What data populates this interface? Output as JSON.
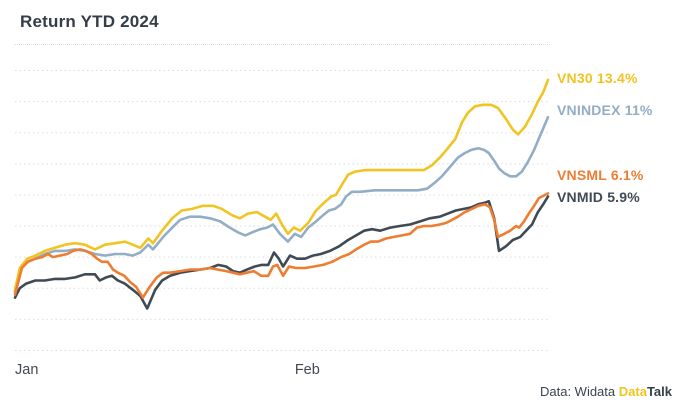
{
  "title": "Return YTD 2024",
  "credit": {
    "prefix": "Data: Widata ",
    "brand_yellow": "Data",
    "brand_dark": "Talk"
  },
  "colors": {
    "background": "#ffffff",
    "title_text": "#333e48",
    "gridline": "#dddddd",
    "axis_label": "#3e4954",
    "credit_yellow": "#f2c51e"
  },
  "chart_data": {
    "type": "line",
    "title": "Return YTD 2024",
    "xlabel": "",
    "ylabel": "",
    "unit": "percent YTD return",
    "grid": "horizontal dotted lines, unlabeled",
    "legend_position": "right edge, colored text at line ends",
    "ylim": [
      -4.1,
      15.0
    ],
    "gridlines": [
      14,
      12,
      10,
      8,
      6,
      4,
      2,
      0,
      -2,
      -4
    ],
    "x_ticks": [
      {
        "label": "Jan",
        "t": 0.0
      },
      {
        "label": "Feb",
        "t": 0.525
      }
    ],
    "draw_order": [
      1,
      0,
      3,
      2
    ],
    "series": [
      {
        "name": "VN30",
        "return_pct": 13.4,
        "display": "VN30 13.4%",
        "color": "#f0c422",
        "points": [
          [
            0,
            -0.1
          ],
          [
            0.009,
            1.3
          ],
          [
            0.023,
            1.9
          ],
          [
            0.038,
            2.1
          ],
          [
            0.056,
            2.4
          ],
          [
            0.075,
            2.6
          ],
          [
            0.094,
            2.8
          ],
          [
            0.113,
            2.9
          ],
          [
            0.131,
            2.8
          ],
          [
            0.15,
            2.5
          ],
          [
            0.169,
            2.8
          ],
          [
            0.188,
            2.9
          ],
          [
            0.206,
            3.0
          ],
          [
            0.221,
            2.8
          ],
          [
            0.235,
            2.6
          ],
          [
            0.25,
            3.2
          ],
          [
            0.259,
            2.9
          ],
          [
            0.276,
            3.7
          ],
          [
            0.295,
            4.5
          ],
          [
            0.313,
            5.0
          ],
          [
            0.332,
            5.1
          ],
          [
            0.353,
            5.3
          ],
          [
            0.372,
            5.3
          ],
          [
            0.388,
            5.1
          ],
          [
            0.407,
            4.7
          ],
          [
            0.422,
            4.5
          ],
          [
            0.437,
            4.8
          ],
          [
            0.454,
            4.9
          ],
          [
            0.469,
            4.6
          ],
          [
            0.48,
            4.4
          ],
          [
            0.49,
            4.8
          ],
          [
            0.501,
            4.1
          ],
          [
            0.512,
            3.5
          ],
          [
            0.523,
            3.9
          ],
          [
            0.535,
            3.7
          ],
          [
            0.55,
            4.2
          ],
          [
            0.565,
            5.0
          ],
          [
            0.58,
            5.5
          ],
          [
            0.593,
            5.9
          ],
          [
            0.602,
            6.0
          ],
          [
            0.614,
            6.7
          ],
          [
            0.625,
            7.3
          ],
          [
            0.638,
            7.5
          ],
          [
            0.657,
            7.6
          ],
          [
            0.685,
            7.6
          ],
          [
            0.713,
            7.6
          ],
          [
            0.741,
            7.6
          ],
          [
            0.767,
            7.6
          ],
          [
            0.782,
            7.9
          ],
          [
            0.797,
            8.4
          ],
          [
            0.812,
            9.0
          ],
          [
            0.826,
            9.6
          ],
          [
            0.839,
            10.7
          ],
          [
            0.85,
            11.3
          ],
          [
            0.863,
            11.7
          ],
          [
            0.878,
            11.8
          ],
          [
            0.893,
            11.8
          ],
          [
            0.906,
            11.6
          ],
          [
            0.921,
            10.9
          ],
          [
            0.934,
            10.2
          ],
          [
            0.944,
            9.9
          ],
          [
            0.957,
            10.4
          ],
          [
            0.97,
            11.2
          ],
          [
            0.981,
            12.0
          ],
          [
            0.991,
            12.6
          ],
          [
            1,
            13.4
          ]
        ]
      },
      {
        "name": "VNINDEX",
        "return_pct": 11,
        "display": "VNINDEX 11%",
        "color": "#92adc5",
        "points": [
          [
            0,
            -0.2
          ],
          [
            0.009,
            1.2
          ],
          [
            0.023,
            1.7
          ],
          [
            0.038,
            1.9
          ],
          [
            0.056,
            2.2
          ],
          [
            0.075,
            2.4
          ],
          [
            0.094,
            2.4
          ],
          [
            0.113,
            2.5
          ],
          [
            0.131,
            2.4
          ],
          [
            0.15,
            2.2
          ],
          [
            0.169,
            2.1
          ],
          [
            0.188,
            2.2
          ],
          [
            0.206,
            2.2
          ],
          [
            0.221,
            2.1
          ],
          [
            0.235,
            2.3
          ],
          [
            0.25,
            2.8
          ],
          [
            0.259,
            2.5
          ],
          [
            0.278,
            3.3
          ],
          [
            0.295,
            3.9
          ],
          [
            0.31,
            4.4
          ],
          [
            0.328,
            4.6
          ],
          [
            0.347,
            4.6
          ],
          [
            0.366,
            4.5
          ],
          [
            0.385,
            4.3
          ],
          [
            0.403,
            3.9
          ],
          [
            0.418,
            3.6
          ],
          [
            0.432,
            3.4
          ],
          [
            0.445,
            3.6
          ],
          [
            0.46,
            3.8
          ],
          [
            0.473,
            3.9
          ],
          [
            0.484,
            4.1
          ],
          [
            0.497,
            3.5
          ],
          [
            0.512,
            3.0
          ],
          [
            0.525,
            3.5
          ],
          [
            0.537,
            3.3
          ],
          [
            0.55,
            3.9
          ],
          [
            0.565,
            4.3
          ],
          [
            0.578,
            4.7
          ],
          [
            0.589,
            5.0
          ],
          [
            0.6,
            5.1
          ],
          [
            0.612,
            5.4
          ],
          [
            0.621,
            5.9
          ],
          [
            0.632,
            6.2
          ],
          [
            0.647,
            6.2
          ],
          [
            0.675,
            6.3
          ],
          [
            0.704,
            6.3
          ],
          [
            0.732,
            6.3
          ],
          [
            0.756,
            6.3
          ],
          [
            0.773,
            6.4
          ],
          [
            0.788,
            6.8
          ],
          [
            0.801,
            7.2
          ],
          [
            0.816,
            7.8
          ],
          [
            0.831,
            8.4
          ],
          [
            0.844,
            8.7
          ],
          [
            0.856,
            8.9
          ],
          [
            0.869,
            9.0
          ],
          [
            0.88,
            8.9
          ],
          [
            0.889,
            8.7
          ],
          [
            0.899,
            8.2
          ],
          [
            0.908,
            7.7
          ],
          [
            0.918,
            7.4
          ],
          [
            0.929,
            7.2
          ],
          [
            0.94,
            7.2
          ],
          [
            0.951,
            7.5
          ],
          [
            0.962,
            8.1
          ],
          [
            0.974,
            8.9
          ],
          [
            0.985,
            9.8
          ],
          [
            1,
            11.0
          ]
        ]
      },
      {
        "name": "VNSML",
        "return_pct": 6.1,
        "display": "VNSML 6.1%",
        "color": "#ed7d31",
        "points": [
          [
            0,
            -0.4
          ],
          [
            0.013,
            1.3
          ],
          [
            0.024,
            1.7
          ],
          [
            0.038,
            1.9
          ],
          [
            0.051,
            2.0
          ],
          [
            0.062,
            2.2
          ],
          [
            0.071,
            2.0
          ],
          [
            0.084,
            2.1
          ],
          [
            0.098,
            2.2
          ],
          [
            0.109,
            2.4
          ],
          [
            0.122,
            2.5
          ],
          [
            0.133,
            2.4
          ],
          [
            0.144,
            2.2
          ],
          [
            0.154,
            1.9
          ],
          [
            0.163,
            1.7
          ],
          [
            0.174,
            1.7
          ],
          [
            0.184,
            1.2
          ],
          [
            0.193,
            1.0
          ],
          [
            0.205,
            0.8
          ],
          [
            0.216,
            0.4
          ],
          [
            0.227,
            0.1
          ],
          [
            0.24,
            -0.6
          ],
          [
            0.253,
            0.1
          ],
          [
            0.266,
            0.7
          ],
          [
            0.278,
            1.0
          ],
          [
            0.291,
            1.0
          ],
          [
            0.31,
            1.1
          ],
          [
            0.328,
            1.2
          ],
          [
            0.347,
            1.2
          ],
          [
            0.366,
            1.3
          ],
          [
            0.381,
            1.2
          ],
          [
            0.396,
            1.1
          ],
          [
            0.409,
            1.0
          ],
          [
            0.422,
            0.9
          ],
          [
            0.435,
            1.0
          ],
          [
            0.448,
            1.1
          ],
          [
            0.462,
            0.8
          ],
          [
            0.475,
            0.8
          ],
          [
            0.484,
            1.4
          ],
          [
            0.492,
            1.5
          ],
          [
            0.503,
            0.8
          ],
          [
            0.514,
            1.4
          ],
          [
            0.527,
            1.3
          ],
          [
            0.544,
            1.3
          ],
          [
            0.561,
            1.4
          ],
          [
            0.578,
            1.5
          ],
          [
            0.595,
            1.7
          ],
          [
            0.612,
            2.0
          ],
          [
            0.627,
            2.2
          ],
          [
            0.64,
            2.5
          ],
          [
            0.655,
            2.8
          ],
          [
            0.668,
            3.0
          ],
          [
            0.681,
            3.0
          ],
          [
            0.696,
            3.2
          ],
          [
            0.711,
            3.3
          ],
          [
            0.726,
            3.4
          ],
          [
            0.741,
            3.5
          ],
          [
            0.754,
            3.9
          ],
          [
            0.767,
            4.0
          ],
          [
            0.782,
            4.0
          ],
          [
            0.797,
            4.1
          ],
          [
            0.809,
            4.2
          ],
          [
            0.82,
            4.4
          ],
          [
            0.831,
            4.6
          ],
          [
            0.844,
            4.9
          ],
          [
            0.857,
            5.1
          ],
          [
            0.869,
            5.3
          ],
          [
            0.882,
            5.4
          ],
          [
            0.891,
            5.2
          ],
          [
            0.899,
            4.4
          ],
          [
            0.906,
            3.3
          ],
          [
            0.918,
            3.5
          ],
          [
            0.929,
            3.7
          ],
          [
            0.94,
            4.0
          ],
          [
            0.946,
            3.9
          ],
          [
            0.955,
            4.3
          ],
          [
            0.964,
            4.8
          ],
          [
            0.974,
            5.3
          ],
          [
            0.983,
            5.8
          ],
          [
            1,
            6.1
          ]
        ]
      },
      {
        "name": "VNMID",
        "return_pct": 5.9,
        "display": "VNMID 5.9%",
        "color": "#3f4a54",
        "points": [
          [
            0,
            -0.6
          ],
          [
            0.009,
            0.0
          ],
          [
            0.021,
            0.3
          ],
          [
            0.038,
            0.5
          ],
          [
            0.056,
            0.5
          ],
          [
            0.075,
            0.6
          ],
          [
            0.094,
            0.6
          ],
          [
            0.113,
            0.7
          ],
          [
            0.131,
            0.9
          ],
          [
            0.15,
            0.9
          ],
          [
            0.159,
            0.5
          ],
          [
            0.171,
            0.7
          ],
          [
            0.182,
            0.8
          ],
          [
            0.193,
            0.5
          ],
          [
            0.206,
            0.3
          ],
          [
            0.221,
            -0.1
          ],
          [
            0.235,
            -0.5
          ],
          [
            0.248,
            -1.3
          ],
          [
            0.263,
            -0.1
          ],
          [
            0.276,
            0.5
          ],
          [
            0.291,
            0.8
          ],
          [
            0.31,
            1.0
          ],
          [
            0.328,
            1.1
          ],
          [
            0.347,
            1.2
          ],
          [
            0.366,
            1.3
          ],
          [
            0.381,
            1.5
          ],
          [
            0.396,
            1.4
          ],
          [
            0.409,
            1.1
          ],
          [
            0.422,
            1.0
          ],
          [
            0.435,
            1.2
          ],
          [
            0.45,
            1.4
          ],
          [
            0.463,
            1.5
          ],
          [
            0.475,
            1.5
          ],
          [
            0.486,
            2.3
          ],
          [
            0.495,
            1.9
          ],
          [
            0.503,
            1.4
          ],
          [
            0.516,
            2.1
          ],
          [
            0.529,
            1.9
          ],
          [
            0.544,
            1.9
          ],
          [
            0.559,
            2.1
          ],
          [
            0.574,
            2.2
          ],
          [
            0.591,
            2.4
          ],
          [
            0.608,
            2.7
          ],
          [
            0.625,
            3.1
          ],
          [
            0.64,
            3.4
          ],
          [
            0.655,
            3.7
          ],
          [
            0.67,
            3.8
          ],
          [
            0.685,
            3.7
          ],
          [
            0.704,
            3.9
          ],
          [
            0.722,
            4.0
          ],
          [
            0.741,
            4.1
          ],
          [
            0.76,
            4.3
          ],
          [
            0.778,
            4.5
          ],
          [
            0.797,
            4.6
          ],
          [
            0.812,
            4.8
          ],
          [
            0.827,
            5.0
          ],
          [
            0.842,
            5.1
          ],
          [
            0.856,
            5.2
          ],
          [
            0.869,
            5.4
          ],
          [
            0.882,
            5.5
          ],
          [
            0.889,
            5.6
          ],
          [
            0.899,
            4.5
          ],
          [
            0.908,
            2.4
          ],
          [
            0.921,
            2.7
          ],
          [
            0.934,
            3.1
          ],
          [
            0.948,
            3.3
          ],
          [
            0.959,
            3.7
          ],
          [
            0.97,
            4.1
          ],
          [
            0.981,
            4.9
          ],
          [
            0.991,
            5.4
          ],
          [
            1,
            5.9
          ]
        ]
      }
    ]
  }
}
